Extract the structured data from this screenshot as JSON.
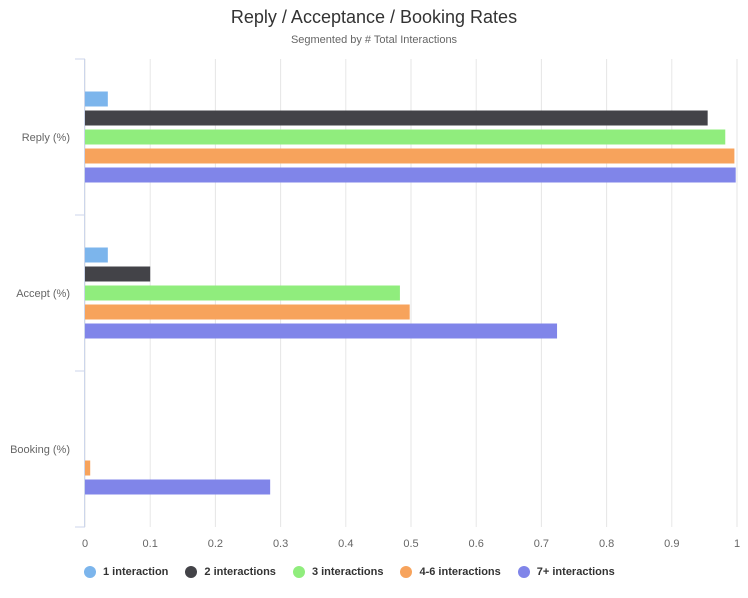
{
  "chart_data": {
    "type": "bar",
    "orientation": "horizontal",
    "title": "Reply / Acceptance / Booking Rates",
    "subtitle": "Segmented by # Total Interactions",
    "categories": [
      "Reply (%)",
      "Accept (%)",
      "Booking (%)"
    ],
    "series": [
      {
        "name": "1 interaction",
        "color": "#7cb5ec",
        "values": [
          0.035,
          0.035,
          0
        ]
      },
      {
        "name": "2 interactions",
        "color": "#434348",
        "values": [
          0.955,
          0.1,
          0
        ]
      },
      {
        "name": "3 interactions",
        "color": "#90ed7d",
        "values": [
          0.982,
          0.483,
          0
        ]
      },
      {
        "name": "4-6 interactions",
        "color": "#f7a35c",
        "values": [
          0.996,
          0.498,
          0.008
        ]
      },
      {
        "name": "7+ interactions",
        "color": "#8085e9",
        "values": [
          0.998,
          0.724,
          0.284
        ]
      }
    ],
    "xlim": [
      0,
      1
    ],
    "x_ticks": [
      "0",
      "0.1",
      "0.2",
      "0.3",
      "0.4",
      "0.5",
      "0.6",
      "0.7",
      "0.8",
      "0.9",
      "1"
    ],
    "grid": true,
    "legend_position": "bottom-left"
  }
}
